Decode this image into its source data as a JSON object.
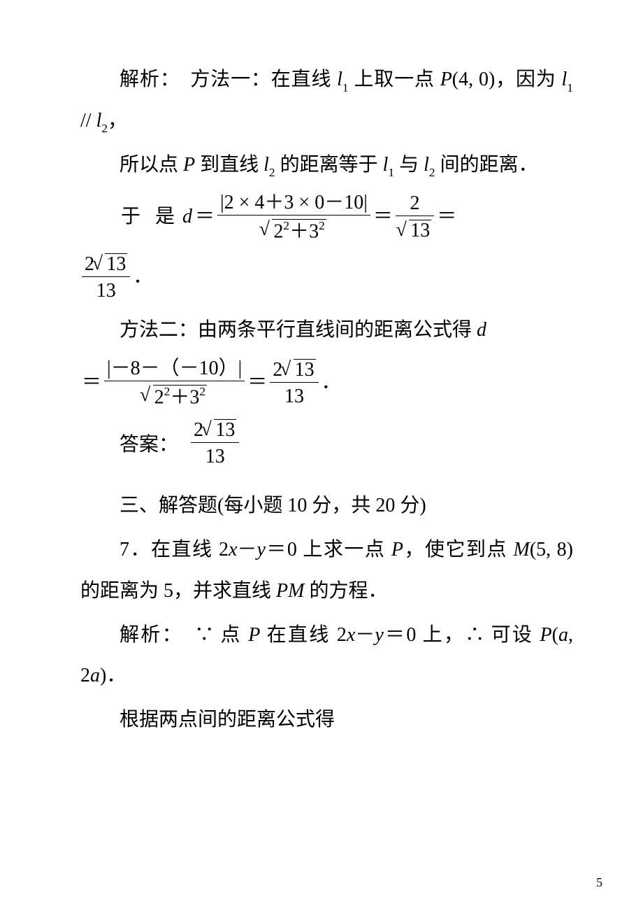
{
  "page_number": "5",
  "colors": {
    "text": "#000000",
    "background": "#ffffff"
  },
  "typography": {
    "body_fontsize": 28,
    "line_height": 2.1,
    "indent_em": 2
  },
  "p1_a": "解析：　方法一：在直线 ",
  "p1_l1": "l",
  "p1_l1_sub": "1",
  "p1_b": " 上取一点 ",
  "p1_P": "P",
  "p1_c": "(4, 0)，因为 ",
  "p1_l1b": "l",
  "p1_l1b_sub": "1",
  "p1_para": " // ",
  "p1_l2": "l",
  "p1_l2_sub": "2",
  "p1_d": "，",
  "p2_a": "所以点 ",
  "p2_P": "P",
  "p2_b": " 到直线 ",
  "p2_l2": "l",
  "p2_l2_sub": "2",
  "p2_c": " 的距离等于 ",
  "p2_l1": "l",
  "p2_l1_sub": "1",
  "p2_d": " 与 ",
  "p2_l2b": "l",
  "p2_l2b_sub": "2",
  "p2_e": " 间的距离．",
  "eq1_pre": "于 是 ",
  "eq1_d": "d",
  "eq1_eq": "＝",
  "eq1_num1": "|2 × 4＋3 × 0－10|",
  "eq1_den1_in": "2",
  "eq1_den1_exp1": "2",
  "eq1_den1_plus": "＋3",
  "eq1_den1_exp2": "2",
  "eq1_eq2": "＝",
  "eq1_num2": "2",
  "eq1_den2_in": "13",
  "eq1_eq3": "＝",
  "eq1_num3_a": "2",
  "eq1_num3_in": "13",
  "eq1_den3": "13",
  "eq1_period": "．",
  "p3_a": "方法二：由两条平行直线间的距离公式得 ",
  "p3_d": "d",
  "eq2_eq": "＝",
  "eq2_num1": "|－8－（－10）|",
  "eq2_den1_in": "2",
  "eq2_den1_exp1": "2",
  "eq2_den1_plus": "＋3",
  "eq2_den1_exp2": "2",
  "eq2_eq2": "＝",
  "eq2_num2_a": "2",
  "eq2_num2_in": "13",
  "eq2_den2": "13",
  "eq2_period": "．",
  "ans_label": "答案：",
  "ans_num_a": "2",
  "ans_num_in": "13",
  "ans_den": "13",
  "sec3": "三、解答题(每小题 10 分，共 20 分)",
  "q7_a": "7．在直线 2",
  "q7_x1": "x",
  "q7_b": "－",
  "q7_y1": "y",
  "q7_c": "＝0 上求一点 ",
  "q7_P": "P",
  "q7_d": "，使它到点 ",
  "q7_M": "M",
  "q7_e": "(5, 8) 的距离为 5，并求直线 ",
  "q7_PM": "PM",
  "q7_f": " 的方程．",
  "s7_a": "解析：　∵ 点 ",
  "s7_P": "P",
  "s7_b": " 在直线 2",
  "s7_x": "x",
  "s7_c": "－",
  "s7_y": "y",
  "s7_d": "＝0 上，∴ 可设 ",
  "s7_P2": "P",
  "s7_e": "(",
  "s7_a1": "a",
  "s7_f": ", 2",
  "s7_a2": "a",
  "s7_g": ")．",
  "p_last": "根据两点间的距离公式得"
}
